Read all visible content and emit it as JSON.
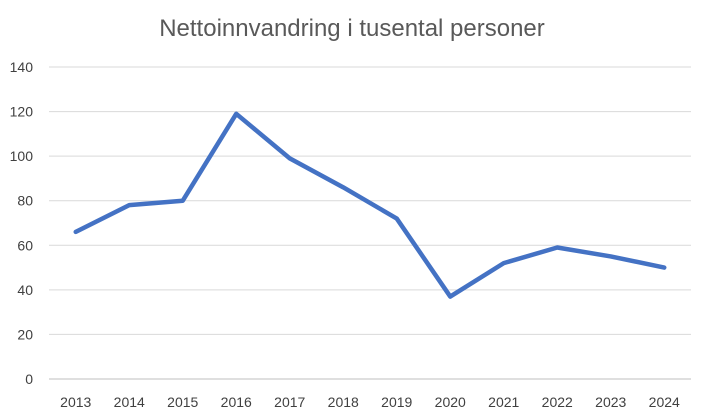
{
  "chart_data": {
    "type": "line",
    "title": "Nettoinnvandring i tusental personer",
    "xlabel": "",
    "ylabel": "",
    "categories": [
      "2013",
      "2014",
      "2015",
      "2016",
      "2017",
      "2018",
      "2019",
      "2020",
      "2021",
      "2022",
      "2023",
      "2024"
    ],
    "series": [
      {
        "values": [
          66,
          78,
          80,
          119,
          99,
          86,
          72,
          37,
          52,
          59,
          55,
          50
        ],
        "color": "#4472c4"
      }
    ],
    "ylim": [
      0,
      140
    ],
    "yticks": [
      "0",
      "20",
      "40",
      "60",
      "80",
      "100",
      "120",
      "140"
    ],
    "grid": true,
    "legend": "none"
  }
}
